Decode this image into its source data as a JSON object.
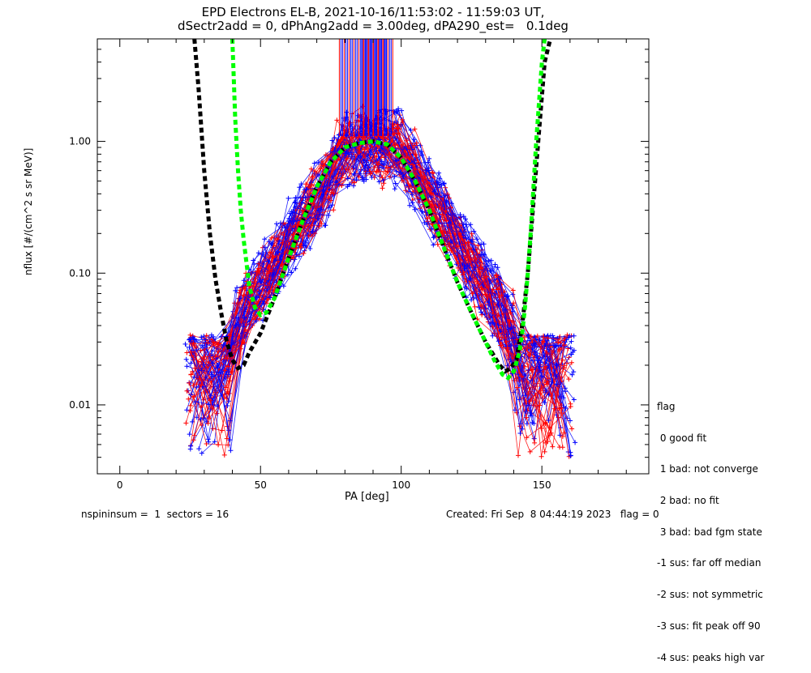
{
  "chart_data": {
    "type": "scatter",
    "title": "EPD Electrons EL-B, 2021-10-16/11:53:02 - 11:59:03 UT,",
    "subtitle": "dSectr2add = 0, dPhAng2add = 3.00deg, dPA290_est=   0.1deg",
    "xlabel": "PA [deg]",
    "ylabel": "nflux [#/(cm^2 s sr MeV)]",
    "xlim": [
      -8,
      188
    ],
    "ylim": [
      0.003,
      6.0
    ],
    "yscale": "log",
    "x_ticks": [
      0,
      50,
      100,
      150
    ],
    "x_tick_labels": [
      "0",
      "50",
      "100",
      "150"
    ],
    "y_ticks": [
      0.01,
      0.1,
      1.0
    ],
    "y_tick_labels": [
      "0.01",
      "0.10",
      "1.00"
    ],
    "grid": false,
    "colors": {
      "blue": "#0000ff",
      "red": "#ff0000",
      "black": "#000000",
      "green": "#00ff00"
    },
    "series": [
      {
        "style": "black-dashed-fit",
        "color": "#000000",
        "x": [
          26.5,
          28,
          30,
          32,
          34,
          36,
          38,
          40,
          42,
          44,
          46,
          50,
          55,
          60,
          65,
          70,
          75,
          80,
          85,
          90,
          95,
          100,
          105,
          110,
          115,
          120,
          125,
          130,
          135,
          137,
          139,
          141,
          143,
          145,
          147,
          149,
          151,
          153
        ],
        "y": [
          6.0,
          2.5,
          0.6,
          0.2,
          0.09,
          0.05,
          0.03,
          0.022,
          0.019,
          0.02,
          0.025,
          0.035,
          0.065,
          0.13,
          0.25,
          0.45,
          0.7,
          0.9,
          0.97,
          1.0,
          0.95,
          0.75,
          0.5,
          0.3,
          0.16,
          0.085,
          0.05,
          0.03,
          0.02,
          0.018,
          0.019,
          0.022,
          0.04,
          0.1,
          0.35,
          1.2,
          4.0,
          6.0
        ]
      },
      {
        "style": "green-dashed-fit",
        "color": "#00ff00",
        "x": [
          40,
          41,
          42,
          43,
          44,
          45,
          46,
          48,
          50,
          52,
          55,
          60,
          65,
          70,
          75,
          80,
          85,
          90,
          95,
          100,
          105,
          110,
          115,
          120,
          125,
          130,
          133,
          136,
          138,
          140,
          142,
          143,
          144,
          145,
          146,
          147,
          148,
          149,
          150,
          151
        ],
        "y": [
          6.0,
          1.5,
          0.6,
          0.3,
          0.18,
          0.12,
          0.08,
          0.055,
          0.048,
          0.05,
          0.065,
          0.13,
          0.25,
          0.45,
          0.7,
          0.9,
          0.97,
          1.0,
          0.95,
          0.75,
          0.5,
          0.3,
          0.16,
          0.085,
          0.05,
          0.03,
          0.022,
          0.017,
          0.016,
          0.018,
          0.025,
          0.035,
          0.055,
          0.1,
          0.2,
          0.45,
          1.0,
          2.0,
          4.0,
          6.0
        ]
      }
    ],
    "legend": {
      "placement": "bottom-right, outside plot",
      "title": "flag",
      "entries": [
        " 0 good fit",
        " 1 bad: not converge",
        " 2 bad: no fit",
        " 3 bad: bad fgm state",
        "-1 sus: far off median",
        "-2 sus: not symmetric",
        "-3 sus: fit peak off 90",
        "-4 sus: peaks high var"
      ]
    },
    "footer_left": "nspininsum =  1  sectors = 16",
    "footer_right": "Created: Fri Sep  8 04:44:19 2023   flag = 0"
  }
}
